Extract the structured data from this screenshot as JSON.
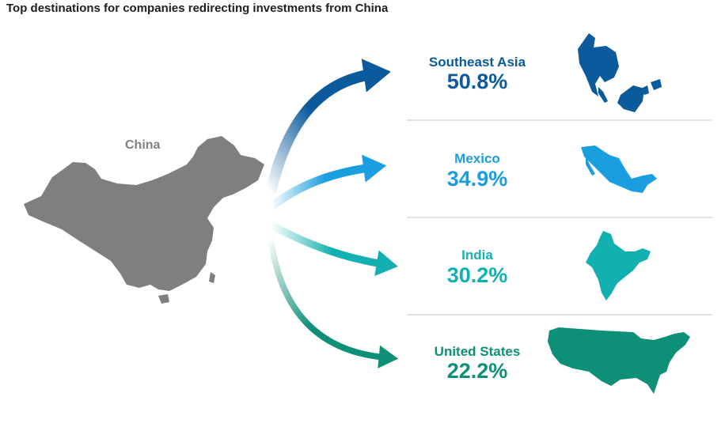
{
  "chart_data": {
    "type": "bar",
    "title": "Top destinations for companies redirecting investments from China",
    "origin": "China",
    "categories": [
      "Southeast Asia",
      "Mexico",
      "India",
      "United States"
    ],
    "values": [
      50.8,
      34.9,
      30.2,
      22.2
    ],
    "value_labels": [
      "50.8%",
      "34.9%",
      "30.2%",
      "22.2%"
    ],
    "unit": "%",
    "colors": [
      "#0a5a9c",
      "#1a9ee0",
      "#12b0b0",
      "#0e8f77"
    ],
    "origin_color": "#7f7f7f",
    "icons": [
      "china-map-icon",
      "southeast-asia-map-icon",
      "mexico-map-icon",
      "india-map-icon",
      "united-states-map-icon"
    ],
    "grid": false,
    "legend": "none"
  }
}
